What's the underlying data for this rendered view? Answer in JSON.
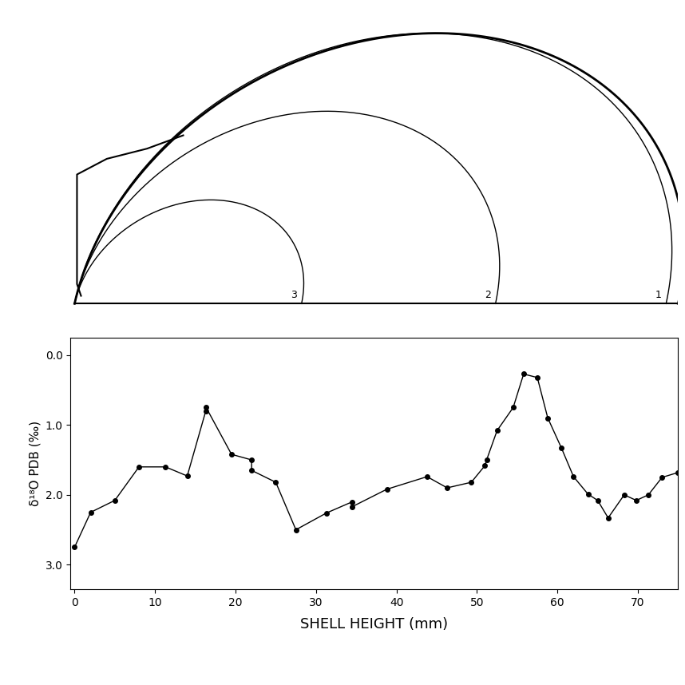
{
  "chart_data": {
    "type": "line",
    "xlabel": "SHELL HEIGHT (mm)",
    "ylabel": "δ¹⁸O PDB (‰)",
    "x": [
      0,
      2,
      5,
      8,
      11.3,
      14,
      16.3,
      16.3,
      19.5,
      22,
      22,
      25,
      27.5,
      31.3,
      34.5,
      34.5,
      38.8,
      43.8,
      46.3,
      49.3,
      51,
      51.2,
      52.5,
      54.5,
      55.8,
      57.5,
      58.8,
      60.5,
      62,
      63.8,
      65,
      66.3,
      68.3,
      69.8,
      71.3,
      73,
      75
    ],
    "values": [
      2.75,
      2.25,
      2.08,
      1.6,
      1.6,
      1.73,
      0.8,
      0.74,
      1.42,
      1.5,
      1.65,
      1.82,
      2.5,
      2.26,
      2.1,
      2.17,
      1.92,
      1.74,
      1.9,
      1.82,
      1.58,
      1.5,
      1.08,
      0.75,
      0.27,
      0.32,
      0.9,
      1.33,
      1.74,
      1.99,
      2.08,
      2.33,
      2.0,
      2.08,
      2.0,
      1.75,
      1.68
    ],
    "color": "#000000",
    "marker": "o",
    "line_style": "solid",
    "xlim": [
      -0.5,
      75
    ],
    "ylim": [
      3.35,
      -0.25
    ],
    "xticks": [
      0,
      10,
      20,
      30,
      40,
      50,
      60,
      70
    ],
    "yticks": [
      {
        "value": 0,
        "label": "0.0"
      },
      {
        "value": 1,
        "label": "1.0"
      },
      {
        "value": 2,
        "label": "2.0"
      },
      {
        "value": 3,
        "label": "3.0"
      }
    ],
    "growth_lines": [
      {
        "label": "1",
        "shell_height": 73.5
      },
      {
        "label": "2",
        "shell_height": 52.3
      },
      {
        "label": "3",
        "shell_height": 28.2
      }
    ]
  }
}
